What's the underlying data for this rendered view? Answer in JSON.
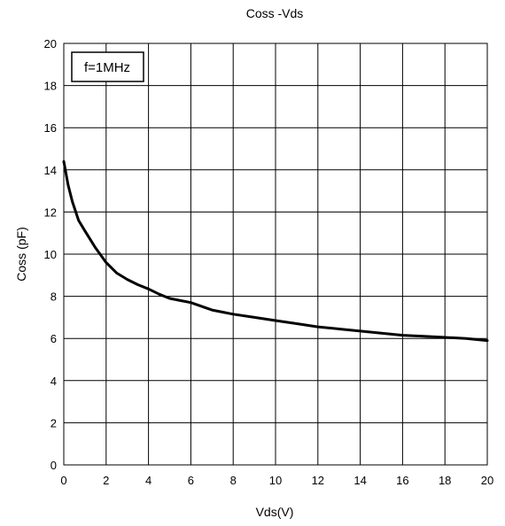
{
  "chart_data": {
    "type": "line",
    "title": "Coss -Vds",
    "xlabel": "Vds(V)",
    "ylabel": "Coss (pF)",
    "xlim": [
      0,
      20
    ],
    "ylim": [
      0,
      20
    ],
    "xticks": [
      0,
      2,
      4,
      6,
      8,
      10,
      12,
      14,
      16,
      18,
      20
    ],
    "yticks": [
      0,
      2,
      4,
      6,
      8,
      10,
      12,
      14,
      16,
      18,
      20
    ],
    "grid": true,
    "annotation": "f=1MHz",
    "series": [
      {
        "x": [
          0,
          0.2,
          0.4,
          0.7,
          1.0,
          1.5,
          2.0,
          2.5,
          3.0,
          3.5,
          4.0,
          4.5,
          5.0,
          5.5,
          6.0,
          7.0,
          8.0,
          9.0,
          10.0,
          11.0,
          12.0,
          13.0,
          14.0,
          15.0,
          16.0,
          17.0,
          18.0,
          19.0,
          20.0
        ],
        "y": [
          14.4,
          13.3,
          12.5,
          11.6,
          11.1,
          10.3,
          9.6,
          9.1,
          8.8,
          8.55,
          8.35,
          8.1,
          7.9,
          7.8,
          7.7,
          7.35,
          7.15,
          7.0,
          6.85,
          6.7,
          6.55,
          6.45,
          6.35,
          6.25,
          6.15,
          6.1,
          6.05,
          6.0,
          5.9
        ]
      }
    ],
    "color": "#000000"
  }
}
